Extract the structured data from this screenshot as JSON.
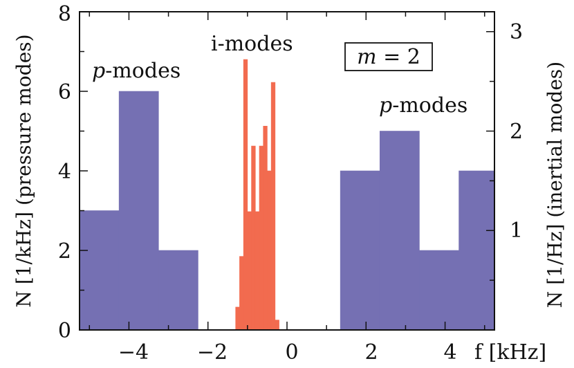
{
  "chart_data": {
    "type": "bar",
    "x_unit_label": "f [kHz]",
    "xlim": [
      -5.25,
      5.25
    ],
    "x_ticks": [
      -4,
      -2,
      0,
      2,
      4
    ],
    "x_tick_labels": [
      "−4",
      "−2",
      "0",
      "2",
      "4"
    ],
    "left_axis": {
      "label": "N [1/kHz] (pressure modes)",
      "ylim": [
        0,
        8
      ],
      "ticks": [
        0,
        2,
        4,
        6,
        8
      ],
      "tick_labels": [
        "0",
        "2",
        "4",
        "6",
        "8"
      ]
    },
    "right_axis": {
      "label": "N [1/Hz] (inertial modes)",
      "ylim": [
        0,
        3.2
      ],
      "ticks": [
        1,
        2,
        3
      ],
      "tick_labels": [
        "1",
        "2",
        "3"
      ]
    },
    "series": [
      {
        "name": "p-modes",
        "axis": "left",
        "color": "#7570b3",
        "bins": [
          {
            "x0": -5.25,
            "x1": -4.25,
            "value": 3
          },
          {
            "x0": -4.25,
            "x1": -3.25,
            "value": 6
          },
          {
            "x0": -3.25,
            "x1": -2.25,
            "value": 2
          },
          {
            "x0": 1.35,
            "x1": 2.35,
            "value": 4
          },
          {
            "x0": 2.35,
            "x1": 3.35,
            "value": 5
          },
          {
            "x0": 3.35,
            "x1": 4.35,
            "value": 2
          },
          {
            "x0": 4.35,
            "x1": 5.35,
            "value": 4
          }
        ]
      },
      {
        "name": "i-modes",
        "axis": "right",
        "color": "#f26b4f",
        "bins": [
          {
            "x0": -1.3,
            "x1": -1.2,
            "value": 0.23
          },
          {
            "x0": -1.2,
            "x1": -1.1,
            "value": 0.74
          },
          {
            "x0": -1.1,
            "x1": -1.0,
            "value": 2.72
          },
          {
            "x0": -1.0,
            "x1": -0.9,
            "value": 1.19
          },
          {
            "x0": -0.9,
            "x1": -0.8,
            "value": 1.85
          },
          {
            "x0": -0.8,
            "x1": -0.7,
            "value": 1.19
          },
          {
            "x0": -0.7,
            "x1": -0.6,
            "value": 1.85
          },
          {
            "x0": -0.6,
            "x1": -0.5,
            "value": 2.05
          },
          {
            "x0": -0.5,
            "x1": -0.4,
            "value": 1.6
          },
          {
            "x0": -0.4,
            "x1": -0.3,
            "value": 2.49
          },
          {
            "x0": -0.3,
            "x1": -0.2,
            "value": 0.1
          }
        ]
      }
    ],
    "annotations": [
      {
        "id": "p-left",
        "prefix": "p",
        "text": "-modes"
      },
      {
        "id": "i-modes",
        "text": "i-modes"
      },
      {
        "id": "m-box",
        "var": "m",
        "text": " = 2"
      },
      {
        "id": "p-right",
        "prefix": "p",
        "text": "-modes"
      }
    ]
  }
}
